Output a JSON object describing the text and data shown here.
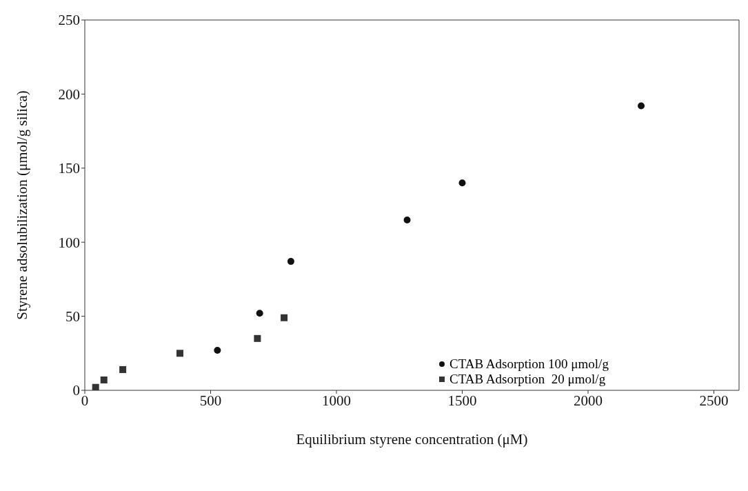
{
  "chart_data": {
    "type": "scatter",
    "xlabel": "Equilibrium styrene concentration (μM)",
    "ylabel": "Styrene adsolubilization (μmol/g silica)",
    "xlim": [
      0,
      2600
    ],
    "xticks": [
      0,
      500,
      1000,
      1500,
      2000,
      2500
    ],
    "ylim": [
      0,
      250
    ],
    "yticks": [
      0,
      50,
      100,
      150,
      200,
      250
    ],
    "grid": false,
    "legend": "bottom right",
    "series": [
      {
        "name": "CTAB Adsorption 100 μmol/g",
        "color": "#111111",
        "marker": "circle",
        "x": [
          527,
          695,
          819,
          1281,
          1500,
          2211
        ],
        "values": [
          27,
          52,
          87,
          115,
          140,
          192
        ]
      },
      {
        "name": "CTAB Adsorption  20 μmol/g",
        "color": "#333333",
        "marker": "square",
        "x": [
          43,
          76,
          151,
          378,
          686,
          792
        ],
        "values": [
          2,
          7,
          14,
          25,
          35,
          49
        ]
      }
    ]
  }
}
